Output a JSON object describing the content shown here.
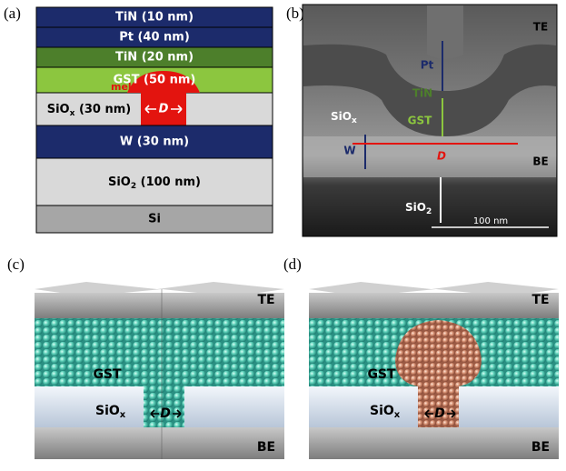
{
  "panel_a": {
    "label": "(a)",
    "layers": {
      "tin_top": "TiN (10 nm)",
      "pt": "Pt (40 nm)",
      "tin": "TiN (20 nm)",
      "gst": "GST (50 nm)",
      "siox": {
        "base": "SiO",
        "sub": "x",
        "tail": " (30 nm)"
      },
      "w": "W (30 nm)",
      "sio2": {
        "base": "SiO",
        "sub": "2",
        "tail": " (100 nm)"
      },
      "si": "Si"
    },
    "melt": "melt",
    "d": "D"
  },
  "panel_b": {
    "label": "(b)",
    "te": "TE",
    "pt": "Pt",
    "tin": "TiN",
    "gst": "GST",
    "siox": {
      "base": "SiO",
      "sub": "x"
    },
    "w": "W",
    "d": "D",
    "be": "BE",
    "sio2": {
      "base": "SiO",
      "sub": "2"
    },
    "scale": "100 nm"
  },
  "panel_c": {
    "label": "(c)",
    "te": "TE",
    "gst": "GST",
    "siox": {
      "base": "SiO",
      "sub": "x"
    },
    "d": "D",
    "be": "BE"
  },
  "panel_d": {
    "label": "(d)",
    "te": "TE",
    "gst": "GST",
    "siox": {
      "base": "SiO",
      "sub": "x"
    },
    "d": "D",
    "be": "BE"
  }
}
